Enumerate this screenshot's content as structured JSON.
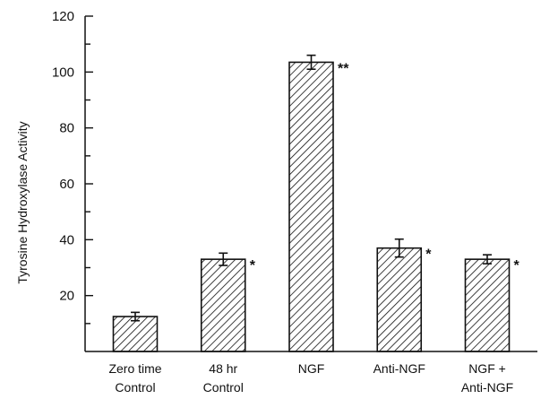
{
  "chart_data": {
    "type": "bar",
    "title": "",
    "xlabel": "",
    "ylabel": "Tyrosine Hydroxylase Activity",
    "ylim": [
      0,
      120
    ],
    "yticks": [
      20,
      40,
      60,
      80,
      100,
      120
    ],
    "grid": false,
    "categories": [
      [
        "Zero time",
        "Control"
      ],
      [
        "48 hr",
        "Control"
      ],
      [
        "NGF"
      ],
      [
        "Anti-NGF"
      ],
      [
        "NGF +",
        "Anti-NGF"
      ]
    ],
    "values": [
      12.5,
      33,
      103.5,
      37,
      33
    ],
    "errors": [
      1.5,
      2.2,
      2.5,
      3.2,
      1.6
    ],
    "significance": [
      "",
      "*",
      "**",
      "*",
      "*"
    ],
    "colors": {
      "bar_edge": "#111111",
      "hatch": "#111111",
      "background": "#ffffff",
      "axis": "#111111"
    }
  }
}
